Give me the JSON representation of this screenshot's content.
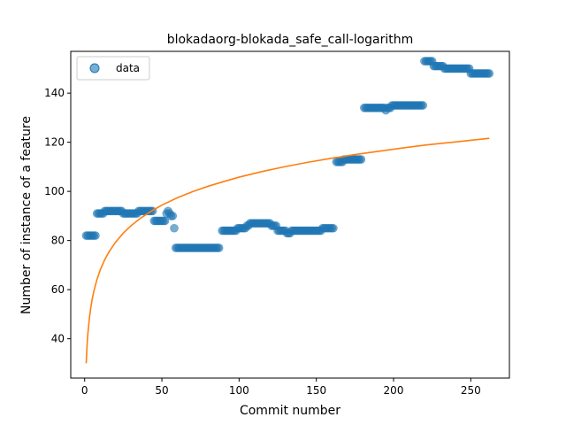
{
  "chart_data": {
    "type": "scatter",
    "title": "blokadaorg-blokada_safe_call-logarithm",
    "xlabel": "Commit number",
    "ylabel": "Number of instance of a feature",
    "xlim": [
      -9,
      275
    ],
    "ylim": [
      24,
      157
    ],
    "xticks": [
      0,
      50,
      100,
      150,
      200,
      250
    ],
    "yticks": [
      40,
      60,
      80,
      100,
      120,
      140
    ],
    "grid": false,
    "legend_position": "upper-left",
    "colors": {
      "data": "#1f77b4",
      "fit": "#ff7f0e"
    },
    "series": [
      {
        "name": "data",
        "kind": "scatter",
        "points": [
          [
            1,
            82
          ],
          [
            2,
            82
          ],
          [
            3,
            82
          ],
          [
            4,
            82
          ],
          [
            5,
            82
          ],
          [
            6,
            82
          ],
          [
            7,
            82
          ],
          [
            8,
            91
          ],
          [
            9,
            91
          ],
          [
            10,
            91
          ],
          [
            11,
            91
          ],
          [
            12,
            91
          ],
          [
            13,
            92
          ],
          [
            14,
            92
          ],
          [
            15,
            92
          ],
          [
            16,
            92
          ],
          [
            17,
            92
          ],
          [
            18,
            92
          ],
          [
            19,
            92
          ],
          [
            20,
            92
          ],
          [
            21,
            92
          ],
          [
            22,
            92
          ],
          [
            23,
            92
          ],
          [
            24,
            92
          ],
          [
            25,
            91
          ],
          [
            26,
            91
          ],
          [
            27,
            91
          ],
          [
            28,
            91
          ],
          [
            29,
            91
          ],
          [
            30,
            91
          ],
          [
            31,
            91
          ],
          [
            32,
            91
          ],
          [
            33,
            91
          ],
          [
            34,
            91
          ],
          [
            35,
            92
          ],
          [
            36,
            92
          ],
          [
            37,
            92
          ],
          [
            38,
            92
          ],
          [
            39,
            92
          ],
          [
            40,
            92
          ],
          [
            41,
            92
          ],
          [
            42,
            92
          ],
          [
            43,
            92
          ],
          [
            44,
            92
          ],
          [
            45,
            88
          ],
          [
            46,
            88
          ],
          [
            47,
            88
          ],
          [
            48,
            88
          ],
          [
            49,
            88
          ],
          [
            50,
            88
          ],
          [
            51,
            88
          ],
          [
            52,
            88
          ],
          [
            53,
            91
          ],
          [
            54,
            92
          ],
          [
            55,
            91
          ],
          [
            56,
            90
          ],
          [
            57,
            90
          ],
          [
            58,
            85
          ],
          [
            59,
            77
          ],
          [
            60,
            77
          ],
          [
            61,
            77
          ],
          [
            62,
            77
          ],
          [
            63,
            77
          ],
          [
            64,
            77
          ],
          [
            65,
            77
          ],
          [
            66,
            77
          ],
          [
            67,
            77
          ],
          [
            68,
            77
          ],
          [
            69,
            77
          ],
          [
            70,
            77
          ],
          [
            71,
            77
          ],
          [
            72,
            77
          ],
          [
            73,
            77
          ],
          [
            74,
            77
          ],
          [
            75,
            77
          ],
          [
            76,
            77
          ],
          [
            77,
            77
          ],
          [
            78,
            77
          ],
          [
            79,
            77
          ],
          [
            80,
            77
          ],
          [
            81,
            77
          ],
          [
            82,
            77
          ],
          [
            83,
            77
          ],
          [
            84,
            77
          ],
          [
            85,
            77
          ],
          [
            86,
            77
          ],
          [
            87,
            77
          ],
          [
            89,
            84
          ],
          [
            90,
            84
          ],
          [
            91,
            84
          ],
          [
            92,
            84
          ],
          [
            93,
            84
          ],
          [
            94,
            84
          ],
          [
            95,
            84
          ],
          [
            96,
            84
          ],
          [
            97,
            84
          ],
          [
            98,
            84
          ],
          [
            99,
            85
          ],
          [
            100,
            85
          ],
          [
            101,
            85
          ],
          [
            102,
            85
          ],
          [
            103,
            85
          ],
          [
            104,
            85
          ],
          [
            105,
            86
          ],
          [
            106,
            86
          ],
          [
            107,
            87
          ],
          [
            108,
            87
          ],
          [
            109,
            87
          ],
          [
            110,
            87
          ],
          [
            111,
            87
          ],
          [
            112,
            87
          ],
          [
            113,
            87
          ],
          [
            114,
            87
          ],
          [
            115,
            87
          ],
          [
            116,
            87
          ],
          [
            117,
            87
          ],
          [
            118,
            87
          ],
          [
            119,
            87
          ],
          [
            120,
            87
          ],
          [
            121,
            86
          ],
          [
            122,
            86
          ],
          [
            123,
            86
          ],
          [
            124,
            86
          ],
          [
            125,
            84
          ],
          [
            126,
            84
          ],
          [
            127,
            84
          ],
          [
            128,
            84
          ],
          [
            129,
            84
          ],
          [
            130,
            84
          ],
          [
            131,
            83
          ],
          [
            132,
            83
          ],
          [
            133,
            83
          ],
          [
            134,
            84
          ],
          [
            135,
            84
          ],
          [
            136,
            84
          ],
          [
            137,
            84
          ],
          [
            138,
            84
          ],
          [
            139,
            84
          ],
          [
            140,
            84
          ],
          [
            141,
            84
          ],
          [
            142,
            84
          ],
          [
            143,
            84
          ],
          [
            144,
            84
          ],
          [
            145,
            84
          ],
          [
            146,
            84
          ],
          [
            147,
            84
          ],
          [
            148,
            84
          ],
          [
            149,
            84
          ],
          [
            150,
            84
          ],
          [
            151,
            84
          ],
          [
            152,
            84
          ],
          [
            153,
            84
          ],
          [
            154,
            85
          ],
          [
            155,
            85
          ],
          [
            156,
            85
          ],
          [
            157,
            85
          ],
          [
            158,
            85
          ],
          [
            159,
            85
          ],
          [
            160,
            85
          ],
          [
            161,
            85
          ],
          [
            163,
            112
          ],
          [
            164,
            112
          ],
          [
            165,
            112
          ],
          [
            166,
            112
          ],
          [
            167,
            112
          ],
          [
            168,
            113
          ],
          [
            169,
            113
          ],
          [
            170,
            113
          ],
          [
            171,
            113
          ],
          [
            172,
            113
          ],
          [
            173,
            113
          ],
          [
            174,
            113
          ],
          [
            175,
            113
          ],
          [
            176,
            113
          ],
          [
            177,
            113
          ],
          [
            178,
            113
          ],
          [
            179,
            113
          ],
          [
            181,
            134
          ],
          [
            182,
            134
          ],
          [
            183,
            134
          ],
          [
            184,
            134
          ],
          [
            185,
            134
          ],
          [
            186,
            134
          ],
          [
            187,
            134
          ],
          [
            188,
            134
          ],
          [
            189,
            134
          ],
          [
            190,
            134
          ],
          [
            191,
            134
          ],
          [
            192,
            134
          ],
          [
            193,
            134
          ],
          [
            194,
            134
          ],
          [
            195,
            133
          ],
          [
            196,
            134
          ],
          [
            197,
            134
          ],
          [
            198,
            134
          ],
          [
            199,
            135
          ],
          [
            200,
            135
          ],
          [
            201,
            135
          ],
          [
            202,
            135
          ],
          [
            203,
            135
          ],
          [
            204,
            135
          ],
          [
            205,
            135
          ],
          [
            206,
            135
          ],
          [
            207,
            135
          ],
          [
            208,
            135
          ],
          [
            209,
            135
          ],
          [
            210,
            135
          ],
          [
            211,
            135
          ],
          [
            212,
            135
          ],
          [
            213,
            135
          ],
          [
            214,
            135
          ],
          [
            215,
            135
          ],
          [
            216,
            135
          ],
          [
            217,
            135
          ],
          [
            218,
            135
          ],
          [
            219,
            135
          ],
          [
            220,
            153
          ],
          [
            221,
            153
          ],
          [
            222,
            153
          ],
          [
            223,
            153
          ],
          [
            224,
            153
          ],
          [
            225,
            153
          ],
          [
            226,
            151
          ],
          [
            227,
            151
          ],
          [
            228,
            151
          ],
          [
            229,
            151
          ],
          [
            230,
            151
          ],
          [
            231,
            151
          ],
          [
            232,
            151
          ],
          [
            233,
            150
          ],
          [
            234,
            150
          ],
          [
            235,
            150
          ],
          [
            236,
            150
          ],
          [
            237,
            150
          ],
          [
            238,
            150
          ],
          [
            239,
            150
          ],
          [
            240,
            150
          ],
          [
            241,
            150
          ],
          [
            242,
            150
          ],
          [
            243,
            150
          ],
          [
            244,
            150
          ],
          [
            245,
            150
          ],
          [
            246,
            150
          ],
          [
            247,
            150
          ],
          [
            248,
            150
          ],
          [
            249,
            150
          ],
          [
            250,
            148
          ],
          [
            251,
            148
          ],
          [
            252,
            148
          ],
          [
            253,
            148
          ],
          [
            254,
            148
          ],
          [
            255,
            148
          ],
          [
            256,
            148
          ],
          [
            257,
            148
          ],
          [
            258,
            148
          ],
          [
            259,
            148
          ],
          [
            260,
            148
          ],
          [
            261,
            148
          ],
          [
            262,
            148
          ]
        ]
      },
      {
        "kind": "line",
        "formula": "30 + 16.45*ln(x)",
        "x_range": [
          1,
          262
        ],
        "points": [
          [
            1,
            30
          ],
          [
            1.5,
            36.7
          ],
          [
            2,
            41.4
          ],
          [
            3,
            48.1
          ],
          [
            4,
            52.8
          ],
          [
            5,
            56.5
          ],
          [
            6,
            59.5
          ],
          [
            8,
            64.2
          ],
          [
            10,
            67.9
          ],
          [
            13,
            72.2
          ],
          [
            16,
            75.6
          ],
          [
            20,
            79.3
          ],
          [
            25,
            83
          ],
          [
            30,
            86
          ],
          [
            36,
            89
          ],
          [
            43,
            91.9
          ],
          [
            50,
            94.4
          ],
          [
            60,
            97.4
          ],
          [
            70,
            99.9
          ],
          [
            80,
            102.1
          ],
          [
            90,
            104
          ],
          [
            100,
            105.8
          ],
          [
            115,
            108.1
          ],
          [
            130,
            110.1
          ],
          [
            145,
            111.9
          ],
          [
            160,
            113.5
          ],
          [
            175,
            115
          ],
          [
            190,
            116.3
          ],
          [
            205,
            117.6
          ],
          [
            220,
            118.8
          ],
          [
            235,
            119.8
          ],
          [
            250,
            120.8
          ],
          [
            262,
            121.6
          ]
        ]
      }
    ]
  }
}
